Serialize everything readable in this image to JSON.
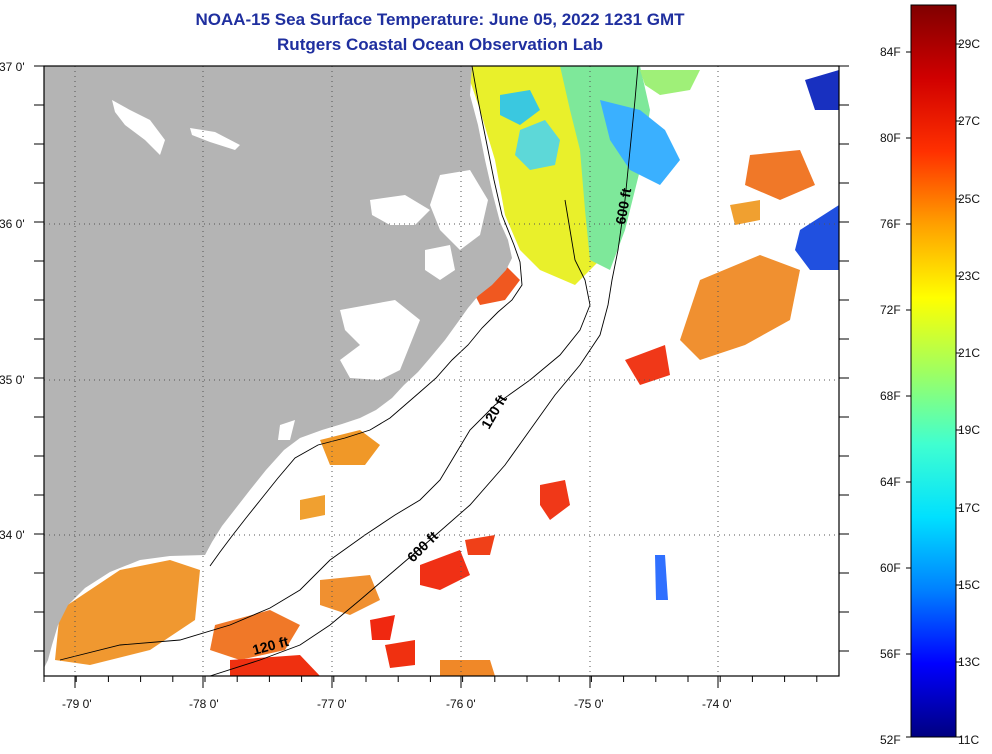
{
  "title": "NOAA-15 Sea Surface Temperature:  June 05, 2022 1231 GMT",
  "subtitle": "Rutgers Coastal Ocean Observation Lab",
  "map": {
    "lat_labels": [
      "37 0'",
      "36 0'",
      "35 0'",
      "34 0'"
    ],
    "lon_labels": [
      "-79 0'",
      "-78 0'",
      "-77 0'",
      "-76 0'",
      "-75 0'",
      "-74 0'"
    ],
    "contours": [
      "600 ft",
      "120 ft",
      "600 ft",
      "120 ft"
    ],
    "colors": {
      "land": "#b4b4b4",
      "ocean_nodata": "#ffffff",
      "frame": "#000000"
    }
  },
  "colorbar": {
    "fahrenheit_labels": [
      "84F",
      "80F",
      "76F",
      "72F",
      "68F",
      "64F",
      "60F",
      "56F",
      "52F"
    ],
    "celsius_labels": [
      "29C",
      "27C",
      "25C",
      "23C",
      "21C",
      "19C",
      "17C",
      "15C",
      "13C",
      "11C"
    ],
    "range_c": [
      11,
      30
    ],
    "gradient": [
      "#000080",
      "#0000ff",
      "#0080ff",
      "#00e0ff",
      "#40ffd0",
      "#a0ff60",
      "#ffff00",
      "#ffa000",
      "#ff3000",
      "#d00000",
      "#800000"
    ]
  }
}
